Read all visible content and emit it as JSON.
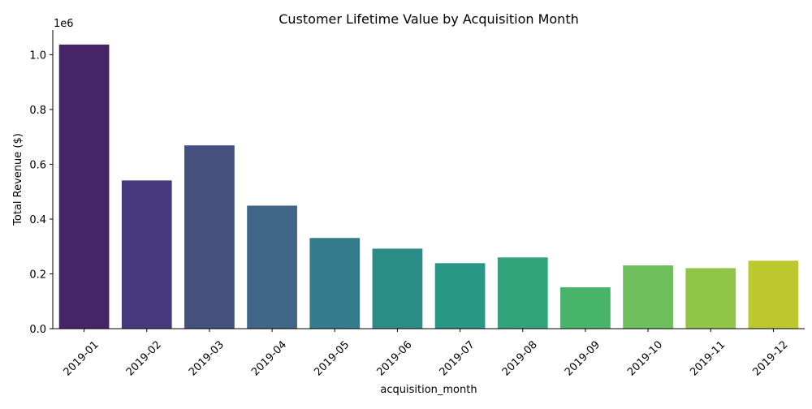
{
  "chart_data": {
    "type": "bar",
    "title": "Customer Lifetime Value by Acquisition Month",
    "xlabel": "acquisition_month",
    "ylabel": "Total Revenue ($)",
    "y_offset_text": "1e6",
    "ylim": [
      0,
      1090000
    ],
    "yticks": [
      0,
      200000,
      400000,
      600000,
      800000,
      1000000
    ],
    "ytick_labels": [
      "0.0",
      "0.2",
      "0.4",
      "0.6",
      "0.8",
      "1.0"
    ],
    "categories": [
      "2019-01",
      "2019-02",
      "2019-03",
      "2019-04",
      "2019-05",
      "2019-06",
      "2019-07",
      "2019-08",
      "2019-09",
      "2019-10",
      "2019-11",
      "2019-12"
    ],
    "values": [
      1037000,
      541000,
      669000,
      449000,
      331000,
      292000,
      239000,
      260000,
      151000,
      231000,
      221000,
      248000
    ],
    "colors": [
      "#472367",
      "#473a7c",
      "#44517f",
      "#3f6686",
      "#347b8b",
      "#2b8b87",
      "#289884",
      "#30a47b",
      "#48b46a",
      "#6fbf5f",
      "#91c548",
      "#bcc82e"
    ],
    "grid": false,
    "legend": "none"
  }
}
